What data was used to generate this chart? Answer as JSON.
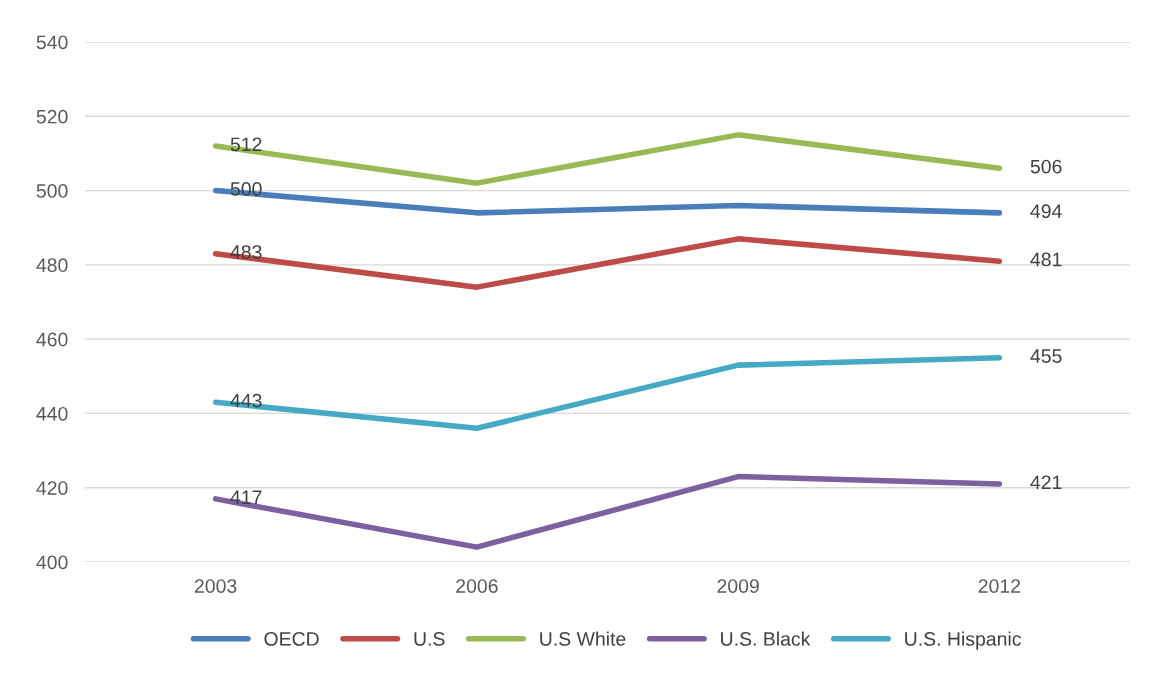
{
  "chart_data": {
    "type": "line",
    "categories": [
      "2003",
      "2006",
      "2009",
      "2012"
    ],
    "ylim": [
      400,
      540
    ],
    "yticks": [
      400,
      420,
      440,
      460,
      480,
      500,
      520,
      540
    ],
    "grid": "y",
    "legend": "bottom",
    "marker": "none",
    "line_style": "solid",
    "series": [
      {
        "name": "OECD",
        "color": "#4a7ebb",
        "values": [
          500,
          494,
          496,
          494
        ],
        "value_labels": [
          "500",
          null,
          null,
          "494"
        ]
      },
      {
        "name": "U.S",
        "color": "#be4b48",
        "values": [
          483,
          474,
          487,
          481
        ],
        "value_labels": [
          "483",
          null,
          null,
          "481"
        ]
      },
      {
        "name": "U.S White",
        "color": "#98b954",
        "values": [
          512,
          502,
          515,
          506
        ],
        "value_labels": [
          "512",
          null,
          null,
          "506"
        ]
      },
      {
        "name": "U.S. Black",
        "color": "#7d60a0",
        "values": [
          417,
          404,
          423,
          421
        ],
        "value_labels": [
          "417",
          null,
          null,
          "421"
        ]
      },
      {
        "name": "U.S. Hispanic",
        "color": "#46aac5",
        "values": [
          443,
          436,
          453,
          455
        ],
        "value_labels": [
          "443",
          null,
          null,
          "455"
        ]
      }
    ]
  }
}
